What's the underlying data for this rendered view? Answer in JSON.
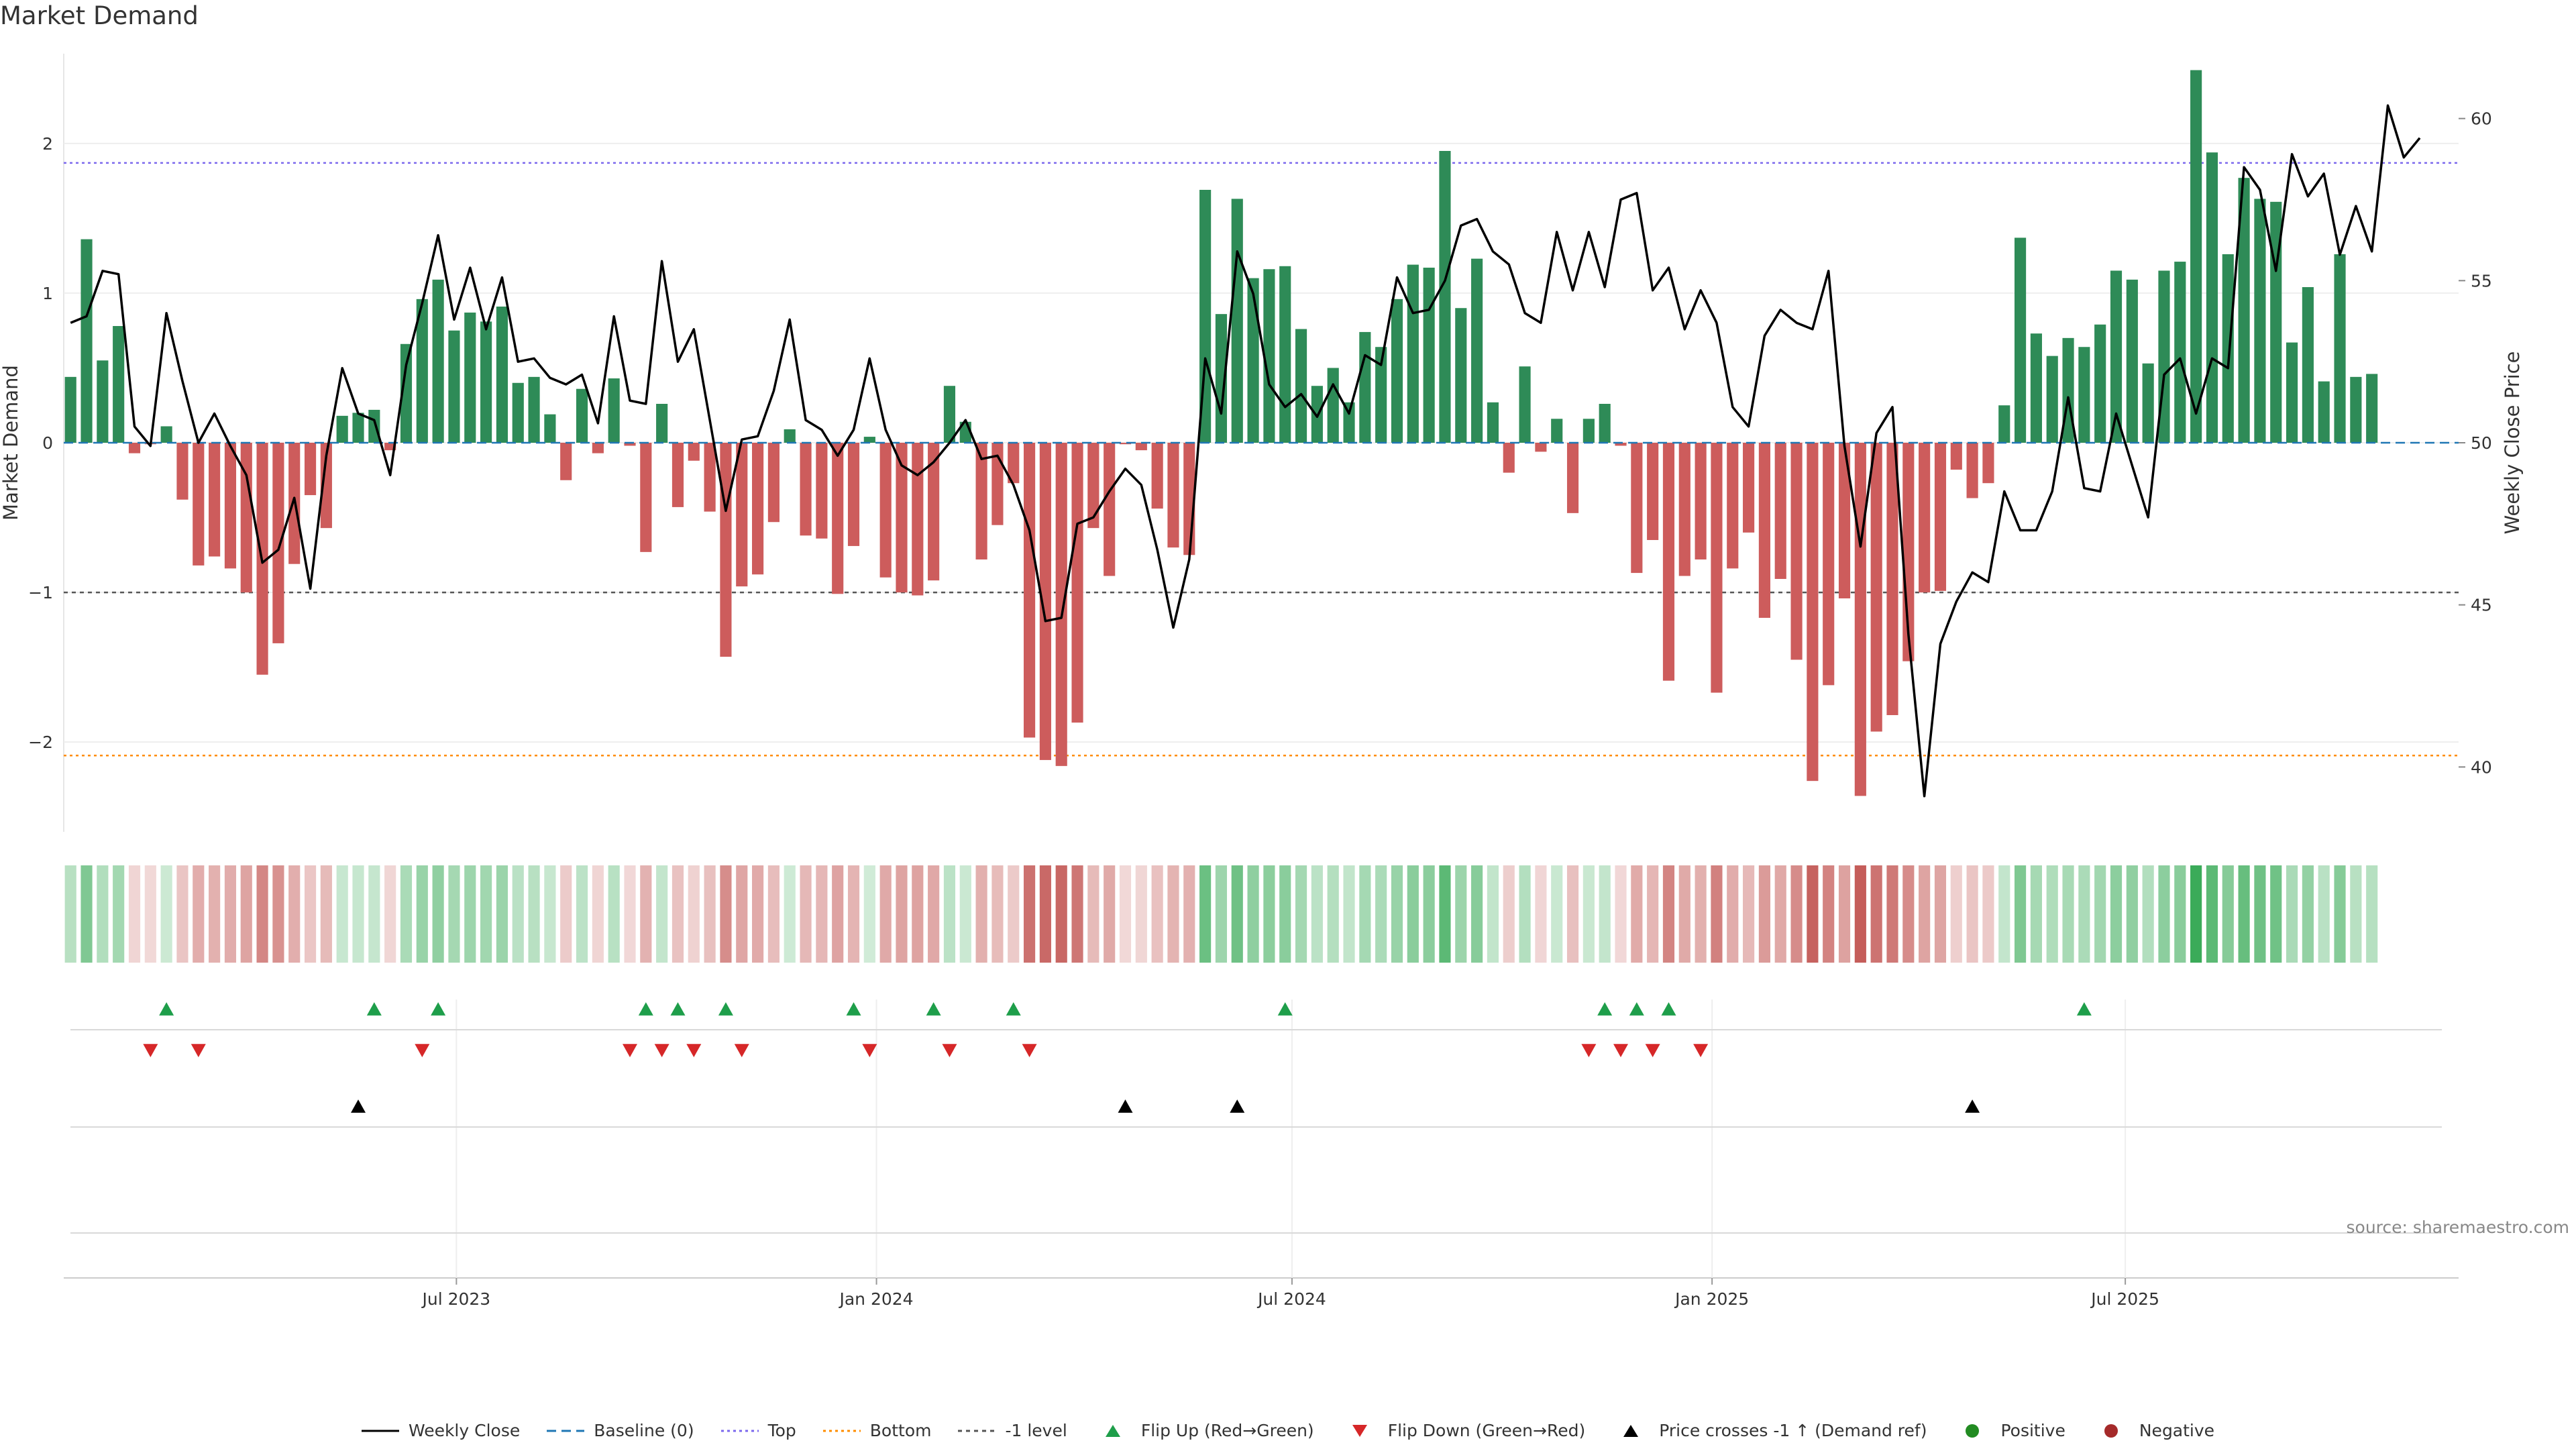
{
  "title": "Market Demand",
  "source": "source: sharemaestro.com",
  "colors": {
    "bar_positive": "#2e8b57",
    "bar_negative": "#cd5c5c",
    "price_line": "#000000",
    "top_line": "#7b68ee",
    "bottom_line": "#ff8c00",
    "minus1_line": "#555555",
    "baseline": "#1f77b4",
    "flip_up": "#1e9e4a",
    "flip_down": "#d62728",
    "cross_marker": "#000000",
    "positive_dot": "#228b22",
    "negative_dot": "#a52a2a"
  },
  "chart_data": {
    "type": "bar",
    "title": "Market Demand",
    "ylabel": "Market Demand",
    "y2label": "Weekly Close Price",
    "ylim": [
      -2.6,
      2.6
    ],
    "y2lim": [
      38,
      62
    ],
    "yticks": [
      2,
      1,
      0,
      -1,
      -2
    ],
    "ytick_labels": [
      "2",
      "1",
      "0",
      "−1",
      "−2"
    ],
    "y2ticks": [
      60,
      55,
      50,
      45,
      40
    ],
    "y2tick_labels": [
      "60",
      "55",
      "50",
      "45",
      "40"
    ],
    "xlim": [
      "2023-01-10",
      "2025-11-24"
    ],
    "xticks": [
      "2023-07-01",
      "2024-01-01",
      "2024-07-01",
      "2025-01-01",
      "2025-07-01"
    ],
    "xtick_labels": [
      "Jul 2023",
      "Jan 2024",
      "Jul 2024",
      "Jan 2025",
      "Jul 2025"
    ],
    "top_level": 1.87,
    "bottom_level": -2.09,
    "minus1_level": -1,
    "start_date": "2023-01-13",
    "demand": [
      0.44,
      1.36,
      0.55,
      0.78,
      -0.07,
      -0.01,
      0.11,
      -0.38,
      -0.82,
      -0.76,
      -0.84,
      -1.0,
      -1.55,
      -1.34,
      -0.81,
      -0.35,
      -0.57,
      0.18,
      0.2,
      0.22,
      -0.05,
      0.66,
      0.96,
      1.09,
      0.75,
      0.87,
      0.81,
      0.91,
      0.4,
      0.44,
      0.19,
      -0.25,
      0.36,
      -0.07,
      0.43,
      -0.02,
      -0.73,
      0.26,
      -0.43,
      -0.12,
      -0.46,
      -1.43,
      -0.96,
      -0.88,
      -0.53,
      0.09,
      -0.62,
      -0.64,
      -1.01,
      -0.69,
      0.04,
      -0.9,
      -1.0,
      -1.02,
      -0.92,
      0.38,
      0.14,
      -0.78,
      -0.55,
      -0.27,
      -1.97,
      -2.12,
      -2.16,
      -1.87,
      -0.57,
      -0.89,
      -0.01,
      -0.05,
      -0.44,
      -0.7,
      -0.75,
      1.69,
      0.86,
      1.63,
      1.1,
      1.16,
      1.18,
      0.76,
      0.38,
      0.5,
      0.27,
      0.74,
      0.64,
      0.96,
      1.19,
      1.17,
      1.95,
      0.9,
      1.23,
      0.27,
      -0.2,
      0.51,
      -0.06,
      0.16,
      -0.47,
      0.16,
      0.26,
      -0.02,
      -0.87,
      -0.65,
      -1.59,
      -0.89,
      -0.78,
      -1.67,
      -0.84,
      -0.6,
      -1.17,
      -0.91,
      -1.45,
      -2.26,
      -1.62,
      -1.04,
      -2.36,
      -1.93,
      -1.82,
      -1.46,
      -1.0,
      -0.99,
      -0.18,
      -0.37,
      -0.27,
      0.25,
      1.37,
      0.73,
      0.58,
      0.7,
      0.64,
      0.79,
      1.15,
      1.09,
      0.53,
      1.15,
      1.21,
      2.49,
      1.94,
      1.26,
      1.77,
      1.63,
      1.61,
      0.67,
      1.04,
      0.41,
      1.26,
      0.44,
      0.46
    ],
    "price": [
      53.7,
      53.9,
      55.3,
      55.2,
      50.5,
      49.9,
      54.0,
      51.9,
      50.0,
      50.9,
      49.9,
      49.0,
      46.3,
      46.7,
      48.3,
      45.5,
      49.6,
      52.3,
      50.9,
      50.7,
      49.0,
      52.4,
      54.3,
      56.4,
      53.8,
      55.4,
      53.5,
      55.1,
      52.5,
      52.6,
      52.0,
      51.8,
      52.1,
      50.6,
      53.9,
      51.3,
      51.2,
      55.6,
      52.5,
      53.5,
      50.7,
      47.9,
      50.1,
      50.2,
      51.6,
      53.8,
      50.7,
      50.4,
      49.6,
      50.4,
      52.6,
      50.4,
      49.3,
      49.0,
      49.4,
      50.0,
      50.7,
      49.5,
      49.6,
      48.7,
      47.3,
      44.5,
      44.6,
      47.5,
      47.7,
      48.5,
      49.2,
      48.7,
      46.7,
      44.3,
      46.4,
      52.6,
      50.9,
      55.9,
      54.6,
      51.8,
      51.1,
      51.5,
      50.8,
      51.8,
      50.9,
      52.7,
      52.4,
      55.1,
      54.0,
      54.1,
      55.0,
      56.7,
      56.9,
      55.9,
      55.5,
      54.0,
      53.7,
      56.5,
      54.7,
      56.5,
      54.8,
      57.5,
      57.7,
      54.7,
      55.4,
      53.5,
      54.7,
      53.7,
      51.1,
      50.5,
      53.3,
      54.1,
      53.7,
      53.5,
      55.3,
      49.9,
      46.8,
      50.3,
      51.1,
      44.1,
      39.1,
      43.8,
      45.1,
      46.0,
      45.7,
      48.5,
      47.3,
      47.3,
      48.5,
      51.4,
      48.6,
      48.5,
      50.9,
      49.3,
      47.7,
      52.1,
      52.6,
      50.9,
      52.6,
      52.3,
      58.5,
      57.8,
      55.3,
      58.9,
      57.6,
      58.3,
      55.8,
      57.3,
      55.9,
      60.4,
      58.8,
      59.4
    ],
    "flip_up": [
      "2023-02-24",
      "2023-05-26",
      "2023-06-23",
      "2023-09-22",
      "2023-10-06",
      "2023-10-27",
      "2023-12-22",
      "2024-01-26",
      "2024-03-01",
      "2024-06-28",
      "2024-11-15",
      "2024-11-29",
      "2024-12-13",
      "2025-06-13"
    ],
    "flip_down": [
      "2023-02-17",
      "2023-03-10",
      "2023-06-16",
      "2023-09-15",
      "2023-09-29",
      "2023-10-13",
      "2023-11-03",
      "2023-12-29",
      "2024-02-02",
      "2024-03-08",
      "2024-11-08",
      "2024-11-22",
      "2024-12-06",
      "2024-12-27"
    ],
    "price_crosses": [
      "2023-05-19",
      "2024-04-19",
      "2024-06-07",
      "2025-04-25"
    ],
    "legend": [
      {
        "key": "weekly_close",
        "label": "Weekly Close"
      },
      {
        "key": "baseline",
        "label": "Baseline (0)"
      },
      {
        "key": "top",
        "label": "Top"
      },
      {
        "key": "bottom",
        "label": "Bottom"
      },
      {
        "key": "minus1",
        "label": "-1 level"
      },
      {
        "key": "flip_up",
        "label": "Flip Up (Red→Green)"
      },
      {
        "key": "flip_down",
        "label": "Flip Down (Green→Red)"
      },
      {
        "key": "price_cross",
        "label": "Price crosses -1 ↑ (Demand ref)"
      },
      {
        "key": "positive",
        "label": "Positive"
      },
      {
        "key": "negative",
        "label": "Negative"
      }
    ],
    "legend_position": "bottom"
  }
}
